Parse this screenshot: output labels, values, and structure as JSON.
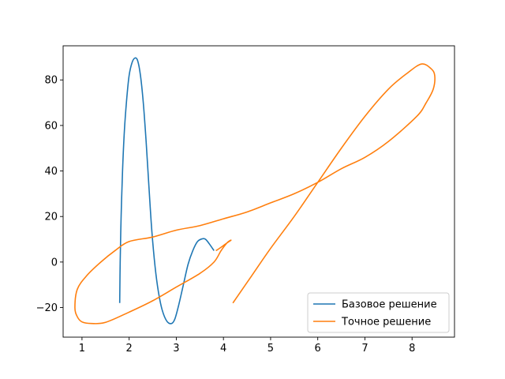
{
  "chart_data": {
    "type": "line",
    "title": "",
    "xlabel": "",
    "ylabel": "",
    "xlim": [
      0.6,
      8.9
    ],
    "ylim": [
      -33,
      95
    ],
    "xticks": [
      1,
      2,
      3,
      4,
      5,
      6,
      7,
      8
    ],
    "yticks": [
      -20,
      0,
      20,
      40,
      60,
      80
    ],
    "grid": false,
    "legend_position": "lower-right",
    "series": [
      {
        "name": "Базовое решение",
        "color": "#1f77b4",
        "points": [
          [
            1.8,
            -18
          ],
          [
            1.81,
            0
          ],
          [
            1.83,
            20
          ],
          [
            1.86,
            40
          ],
          [
            1.9,
            58
          ],
          [
            1.95,
            72
          ],
          [
            2.0,
            82
          ],
          [
            2.06,
            87.5
          ],
          [
            2.12,
            89.6
          ],
          [
            2.18,
            88.5
          ],
          [
            2.24,
            82
          ],
          [
            2.3,
            70
          ],
          [
            2.36,
            53
          ],
          [
            2.42,
            33
          ],
          [
            2.48,
            14
          ],
          [
            2.55,
            -2
          ],
          [
            2.62,
            -13
          ],
          [
            2.7,
            -21
          ],
          [
            2.8,
            -26
          ],
          [
            2.9,
            -27
          ],
          [
            2.97,
            -25
          ],
          [
            3.05,
            -19
          ],
          [
            3.15,
            -10
          ],
          [
            3.25,
            -1
          ],
          [
            3.35,
            5
          ],
          [
            3.45,
            9
          ],
          [
            3.55,
            10.2
          ],
          [
            3.62,
            10
          ],
          [
            3.7,
            8
          ],
          [
            3.8,
            5
          ]
        ]
      },
      {
        "name": "Точное решение",
        "color": "#ff7f0e",
        "points": [
          [
            4.2,
            -18
          ],
          [
            4.6,
            -6
          ],
          [
            5.0,
            6
          ],
          [
            5.5,
            20
          ],
          [
            6.0,
            35
          ],
          [
            6.5,
            50
          ],
          [
            7.0,
            64
          ],
          [
            7.5,
            76
          ],
          [
            7.9,
            83
          ],
          [
            8.2,
            87
          ],
          [
            8.4,
            85
          ],
          [
            8.48,
            82
          ],
          [
            8.45,
            76
          ],
          [
            8.3,
            70
          ],
          [
            8.1,
            64
          ],
          [
            7.5,
            53
          ],
          [
            7.0,
            46
          ],
          [
            6.5,
            41
          ],
          [
            6.0,
            35
          ],
          [
            5.5,
            30
          ],
          [
            5.0,
            26
          ],
          [
            4.5,
            22
          ],
          [
            4.0,
            19
          ],
          [
            3.5,
            16
          ],
          [
            3.0,
            14
          ],
          [
            2.5,
            11
          ],
          [
            2.0,
            9
          ],
          [
            1.7,
            5
          ],
          [
            1.4,
            0
          ],
          [
            1.1,
            -6
          ],
          [
            0.9,
            -12
          ],
          [
            0.85,
            -20
          ],
          [
            0.9,
            -24
          ],
          [
            1.0,
            -26.3
          ],
          [
            1.2,
            -27
          ],
          [
            1.5,
            -26.5
          ],
          [
            2.0,
            -22
          ],
          [
            2.5,
            -17
          ],
          [
            3.0,
            -11
          ],
          [
            3.5,
            -5
          ],
          [
            3.8,
            0
          ],
          [
            3.95,
            5
          ],
          [
            4.08,
            8.5
          ],
          [
            4.16,
            9.6
          ],
          [
            4.05,
            8
          ],
          [
            3.95,
            6.5
          ],
          [
            3.88,
            5.5
          ],
          [
            3.84,
            5
          ]
        ]
      }
    ]
  }
}
